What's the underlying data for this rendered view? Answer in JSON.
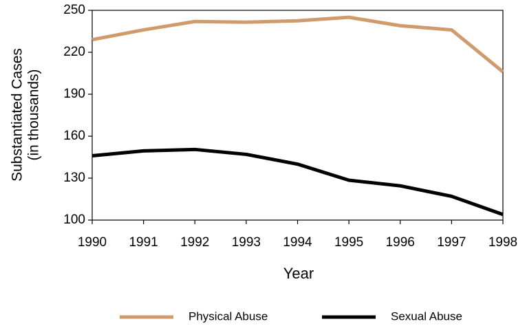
{
  "chart_data": {
    "type": "line",
    "xlabel": "Year",
    "ylabel": [
      "Substantiated Cases",
      "(in thousands)"
    ],
    "x": [
      1990,
      1991,
      1992,
      1993,
      1994,
      1995,
      1996,
      1997,
      1998
    ],
    "xlim": [
      1990,
      1998
    ],
    "xticks": [
      1990,
      1991,
      1992,
      1993,
      1994,
      1995,
      1996,
      1997,
      1998
    ],
    "ylim": [
      100,
      250
    ],
    "yticks": [
      100,
      130,
      160,
      190,
      220,
      250
    ],
    "grid": false,
    "legend": "bottom",
    "series": [
      {
        "name": "Physical Abuse",
        "color": "#d09b6c",
        "values": [
          229,
          236,
          242,
          241.5,
          242.5,
          245,
          239,
          236,
          206
        ]
      },
      {
        "name": "Sexual Abuse",
        "color": "#000000",
        "values": [
          146,
          149.5,
          150.5,
          147,
          140,
          128.5,
          124.5,
          117,
          104
        ]
      }
    ]
  }
}
